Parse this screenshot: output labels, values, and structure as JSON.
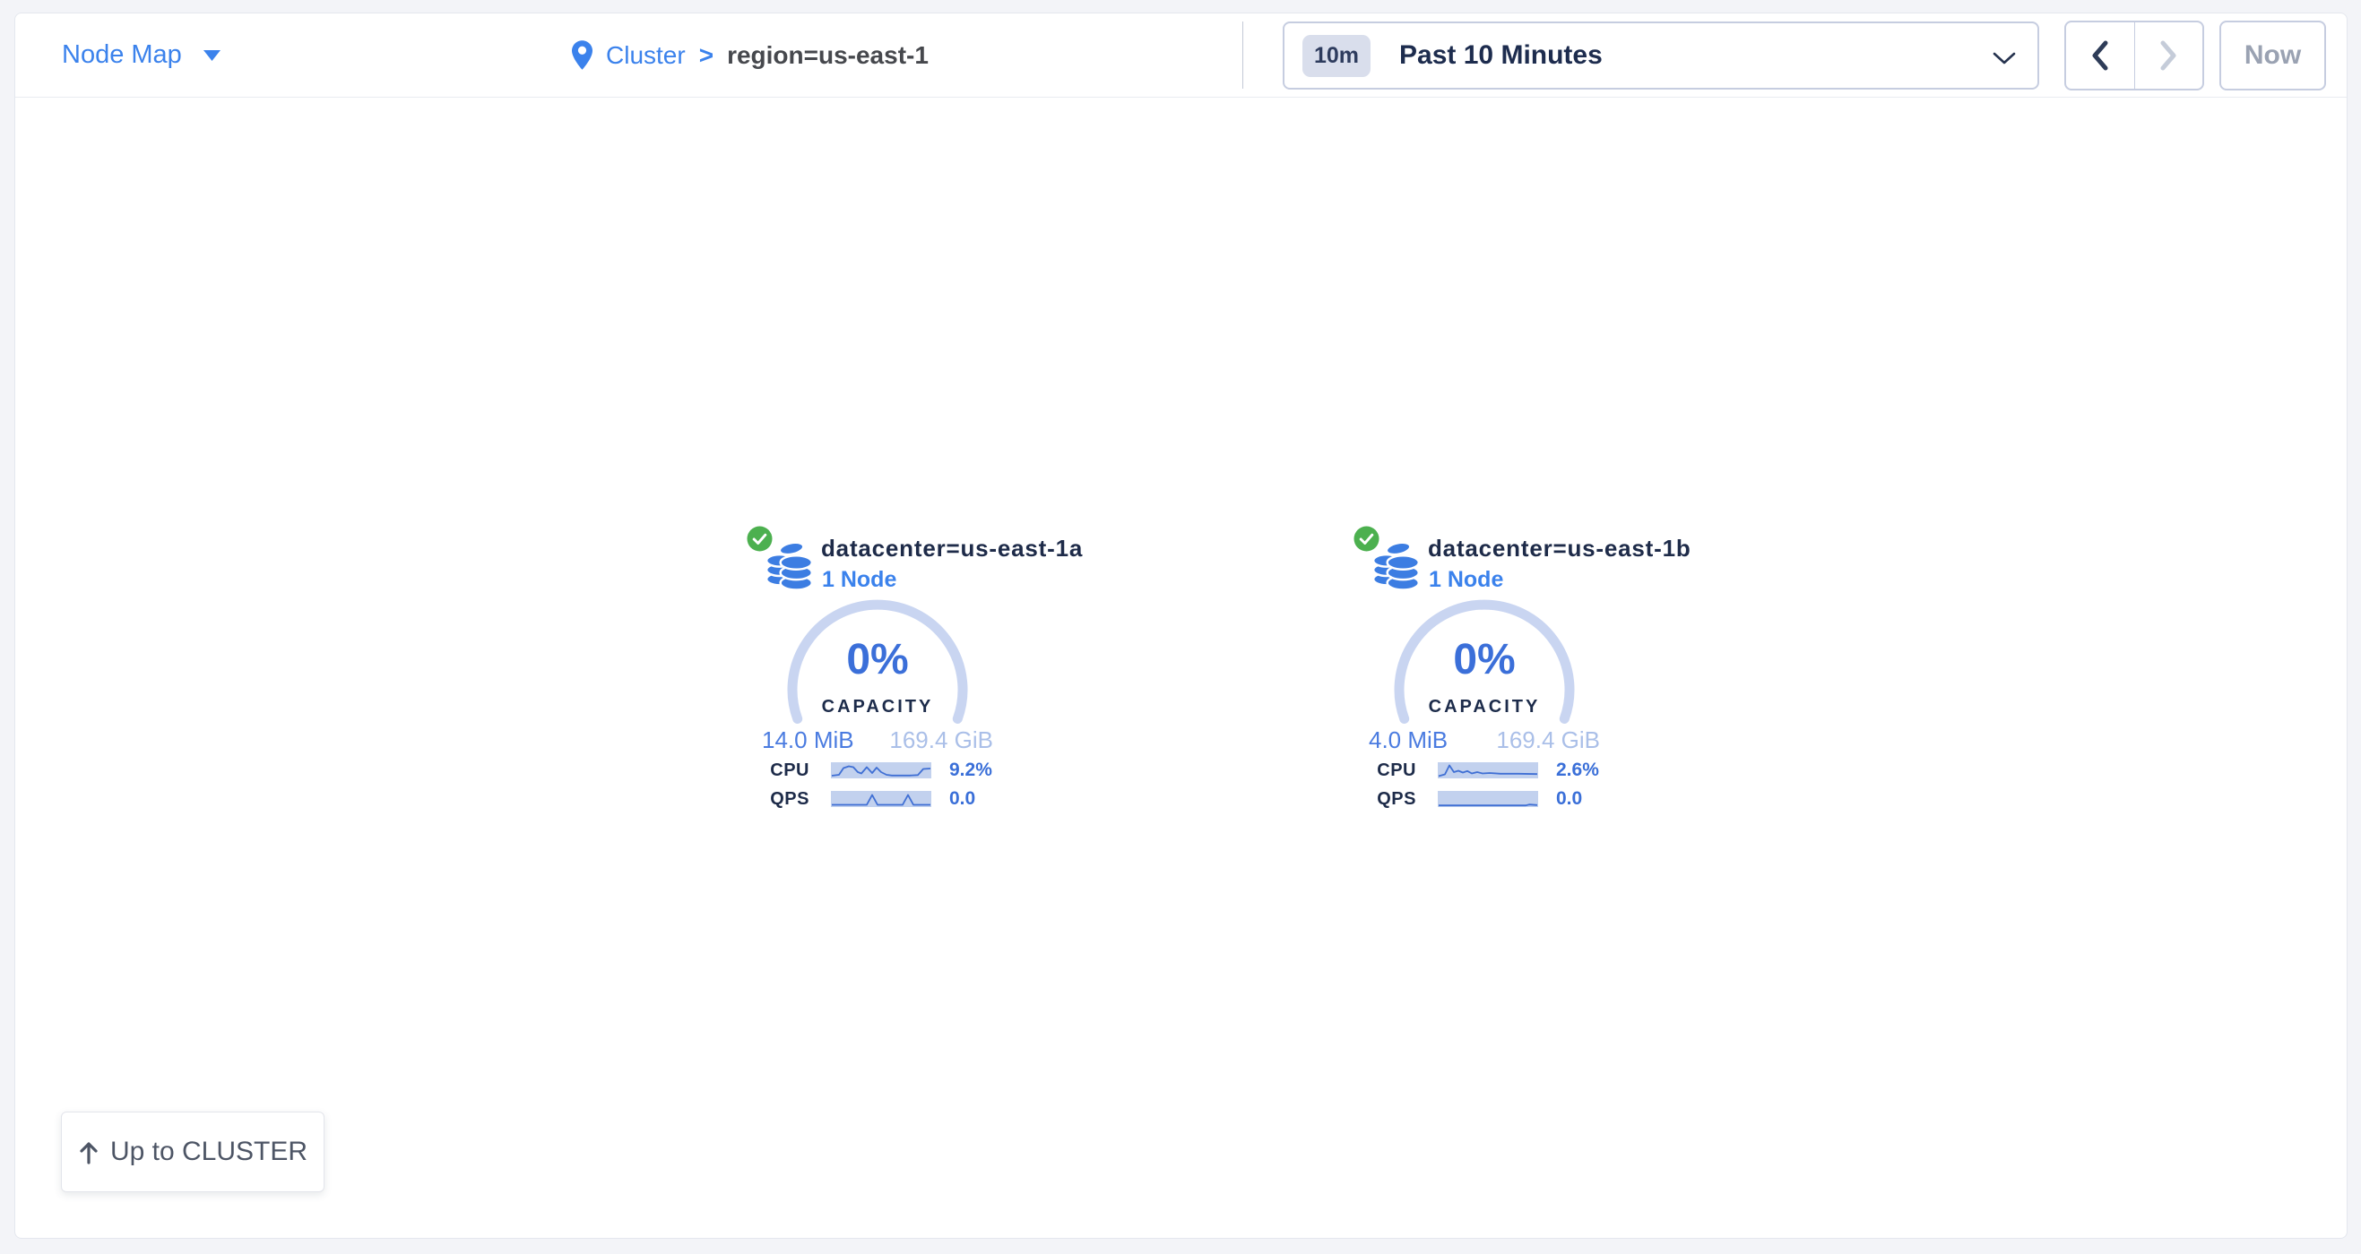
{
  "header": {
    "view_selector": {
      "label": "Node Map"
    },
    "breadcrumb": {
      "root": "Cluster",
      "separator": ">",
      "current": "region=us-east-1"
    },
    "time_selector": {
      "badge": "10m",
      "label": "Past 10 Minutes"
    },
    "now_button": "Now"
  },
  "datacenters": [
    {
      "title": "datacenter=us-east-1a",
      "subtitle": "1 Node",
      "capacity": {
        "percent": "0%",
        "label": "CAPACITY",
        "used": "14.0 MiB",
        "total": "169.4 GiB"
      },
      "metrics": [
        {
          "label": "CPU",
          "value": "9.2%",
          "spark": [
            [
              1,
              15
            ],
            [
              9,
              14
            ],
            [
              14,
              6.5
            ],
            [
              20,
              4.5
            ],
            [
              25,
              5.5
            ],
            [
              30,
              11
            ],
            [
              34,
              12.5
            ],
            [
              40,
              5.5
            ],
            [
              46,
              12
            ],
            [
              51,
              6
            ],
            [
              56,
              11
            ],
            [
              62,
              14
            ],
            [
              68,
              14.8
            ],
            [
              88,
              14.8
            ],
            [
              97,
              14.3
            ],
            [
              103,
              7.5
            ],
            [
              111,
              7
            ]
          ]
        },
        {
          "label": "QPS",
          "value": "0.0",
          "spark": [
            [
              1,
              15.5
            ],
            [
              40,
              15.5
            ],
            [
              46,
              4.5
            ],
            [
              52,
              15.5
            ],
            [
              80,
              15.5
            ],
            [
              86,
              4.5
            ],
            [
              92,
              15.5
            ],
            [
              111,
              15.5
            ]
          ]
        }
      ]
    },
    {
      "title": "datacenter=us-east-1b",
      "subtitle": "1 Node",
      "capacity": {
        "percent": "0%",
        "label": "CAPACITY",
        "used": "4.0 MiB",
        "total": "169.4 GiB"
      },
      "metrics": [
        {
          "label": "CPU",
          "value": "2.6%",
          "spark": [
            [
              1,
              15.5
            ],
            [
              8,
              13.5
            ],
            [
              13,
              3.5
            ],
            [
              18,
              11
            ],
            [
              23,
              9.5
            ],
            [
              28,
              11.5
            ],
            [
              33,
              9.8
            ],
            [
              38,
              12.5
            ],
            [
              44,
              11
            ],
            [
              50,
              12.5
            ],
            [
              58,
              12
            ],
            [
              70,
              12.8
            ],
            [
              90,
              12.8
            ],
            [
              111,
              13.2
            ]
          ]
        },
        {
          "label": "QPS",
          "value": "0.0",
          "spark": [
            [
              1,
              16.2
            ],
            [
              98,
              16.2
            ],
            [
              102,
              15.2
            ],
            [
              111,
              15.8
            ]
          ]
        }
      ]
    }
  ],
  "footer": {
    "up_button_label": "Up to CLUSTER"
  },
  "colors": {
    "accent_blue": "#3b82ec",
    "gauge_blue": "#3b6fd9",
    "value_blue": "#3a6fd8",
    "navy": "#1d2b49",
    "green": "#4cb04f",
    "arc_light": "#c9d5f1",
    "spark_bg": "#c2d1ee",
    "spark_line": "#3f6fd4",
    "capacity_total_light": "#aabfe8",
    "disabled_gray": "#9aa2b2"
  }
}
